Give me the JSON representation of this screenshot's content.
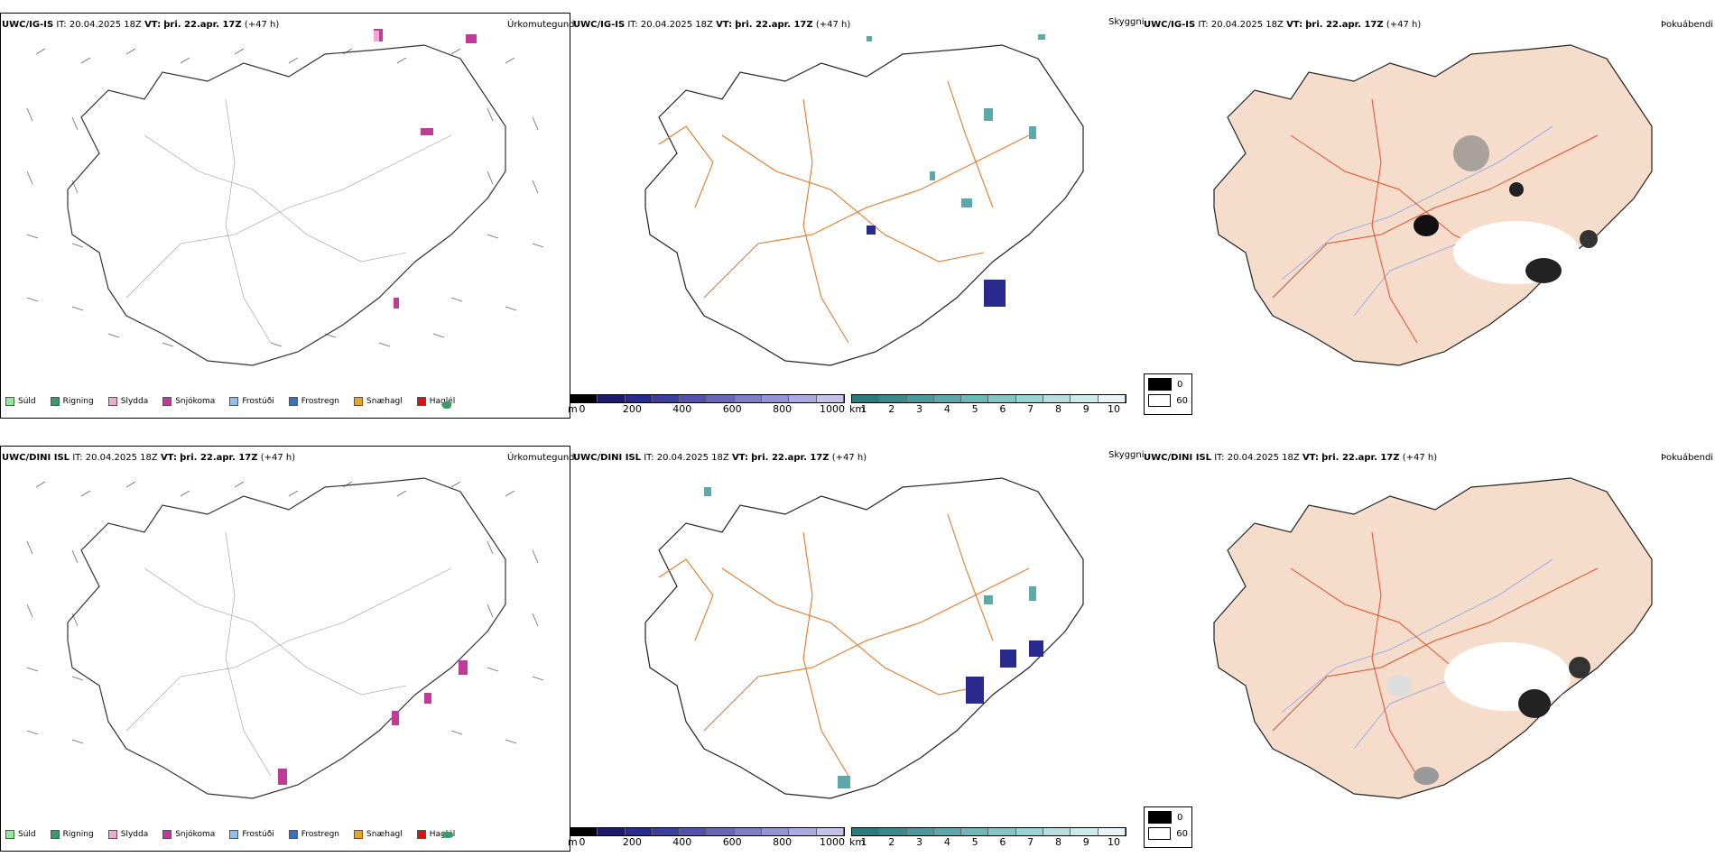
{
  "rows": [
    {
      "model": "UWC/IG-IS",
      "it_label": "IT:",
      "it_value": "20.04.2025 18Z",
      "vt_label": "VT:",
      "vt_value": "þri. 22.apr. 17Z",
      "lead": "(+47 h)"
    },
    {
      "model": "UWC/DINI ISL",
      "it_label": "IT:",
      "it_value": "20.04.2025 18Z",
      "vt_label": "VT:",
      "vt_value": "þri. 22.apr. 17Z",
      "lead": "(+47 h)"
    }
  ],
  "panel_titles": {
    "precip": "Úrkomutegund",
    "vis": "Skyggni",
    "fog": "Þokuábendi"
  },
  "precip_legend": [
    {
      "label": "Súld",
      "color": "#90ee90"
    },
    {
      "label": "Rigning",
      "color": "#3a9a6a"
    },
    {
      "label": "Slydda",
      "color": "#f4a6d6"
    },
    {
      "label": "Snjókoma",
      "color": "#c03a9a"
    },
    {
      "label": "Frostúði",
      "color": "#8fbef2"
    },
    {
      "label": "Frostregn",
      "color": "#3a6fc6"
    },
    {
      "label": "Snæhagl",
      "color": "#f0a020"
    },
    {
      "label": "Haglél",
      "color": "#e01010"
    }
  ],
  "height_bar": {
    "unit": "m",
    "ticks": [
      "0",
      "200",
      "400",
      "600",
      "800",
      "1000"
    ],
    "colors": [
      "#000000",
      "#1a1a6e",
      "#2a2a8e",
      "#3d3d9e",
      "#5252ac",
      "#6868ba",
      "#7e7ec8",
      "#9494d4",
      "#aaaade",
      "#c2c2ea"
    ]
  },
  "vis_bar": {
    "unit": "km",
    "ticks": [
      "1",
      "2",
      "3",
      "4",
      "5",
      "6",
      "7",
      "8",
      "9",
      "10"
    ],
    "colors": [
      "#2a7a7a",
      "#3a8a8a",
      "#4b9999",
      "#5da8a8",
      "#70b6b6",
      "#86c4c4",
      "#9dd2d2",
      "#b5dfdf",
      "#cdeaea",
      "#e6f5f5"
    ]
  },
  "fog_legend": {
    "high": "0",
    "low": "60"
  }
}
